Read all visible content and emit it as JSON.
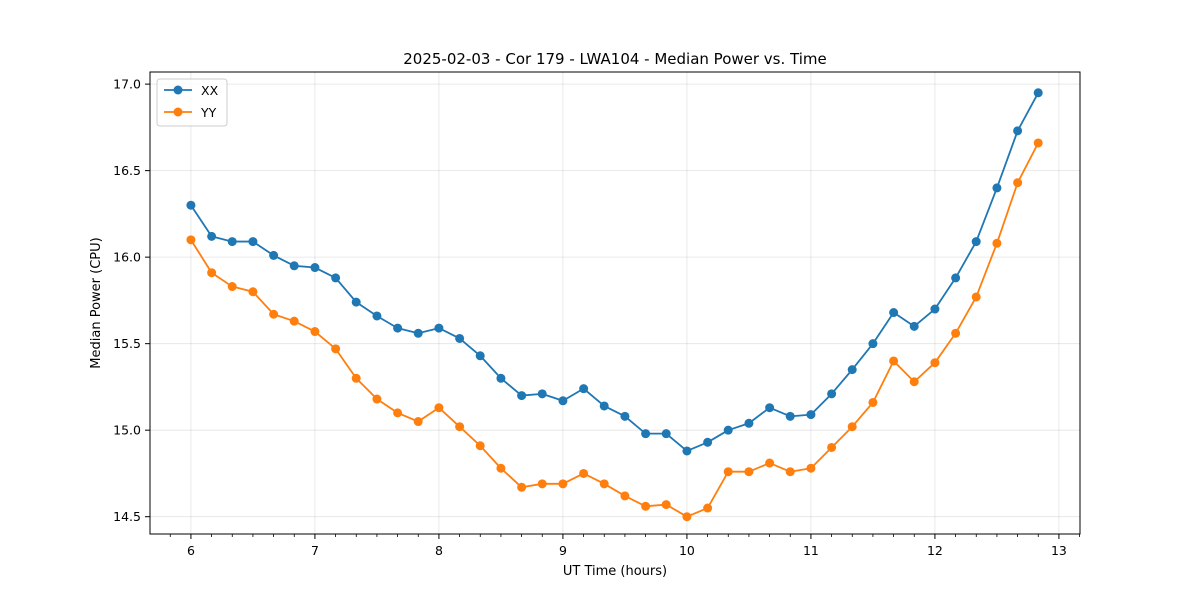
{
  "chart_data": {
    "type": "line",
    "title": "2025-02-03 - Cor 179 - LWA104 - Median Power vs. Time",
    "xlabel": "UT Time (hours)",
    "ylabel": "Median Power (CPU)",
    "xlim": [
      5.67,
      13.17
    ],
    "ylim": [
      14.4,
      17.07
    ],
    "xticks": [
      6,
      7,
      8,
      9,
      10,
      11,
      12,
      13
    ],
    "xtick_labels": [
      "6",
      "7",
      "8",
      "9",
      "10",
      "11",
      "12",
      "13"
    ],
    "yticks": [
      14.5,
      15.0,
      15.5,
      16.0,
      16.5,
      17.0
    ],
    "ytick_labels": [
      "14.5",
      "15.0",
      "15.5",
      "16.0",
      "16.5",
      "17.0"
    ],
    "grid": true,
    "legend_position": "top-left",
    "x": [
      6.0,
      6.167,
      6.333,
      6.5,
      6.667,
      6.833,
      7.0,
      7.167,
      7.333,
      7.5,
      7.667,
      7.833,
      8.0,
      8.167,
      8.333,
      8.5,
      8.667,
      8.833,
      9.0,
      9.167,
      9.333,
      9.5,
      9.667,
      9.833,
      10.0,
      10.167,
      10.333,
      10.5,
      10.667,
      10.833,
      11.0,
      11.167,
      11.333,
      11.5,
      11.667,
      11.833,
      12.0,
      12.167,
      12.333,
      12.5,
      12.667,
      12.833
    ],
    "series": [
      {
        "name": "XX",
        "color": "#1f77b4",
        "values": [
          16.3,
          16.12,
          16.09,
          16.09,
          16.01,
          15.95,
          15.94,
          15.88,
          15.74,
          15.66,
          15.59,
          15.56,
          15.59,
          15.53,
          15.43,
          15.3,
          15.2,
          15.21,
          15.17,
          15.24,
          15.14,
          15.08,
          14.98,
          14.98,
          14.88,
          14.93,
          15.0,
          15.04,
          15.13,
          15.08,
          15.09,
          15.21,
          15.35,
          15.5,
          15.68,
          15.6,
          15.7,
          15.88,
          16.09,
          16.4,
          16.73,
          16.95
        ]
      },
      {
        "name": "YY",
        "color": "#ff7f0e",
        "values": [
          16.1,
          15.91,
          15.83,
          15.8,
          15.67,
          15.63,
          15.57,
          15.47,
          15.3,
          15.18,
          15.1,
          15.05,
          15.13,
          15.02,
          14.91,
          14.78,
          14.67,
          14.69,
          14.69,
          14.75,
          14.69,
          14.62,
          14.56,
          14.57,
          14.5,
          14.55,
          14.76,
          14.76,
          14.81,
          14.76,
          14.78,
          14.9,
          15.02,
          15.16,
          15.4,
          15.28,
          15.39,
          15.56,
          15.77,
          16.08,
          16.43,
          16.66
        ]
      }
    ]
  }
}
